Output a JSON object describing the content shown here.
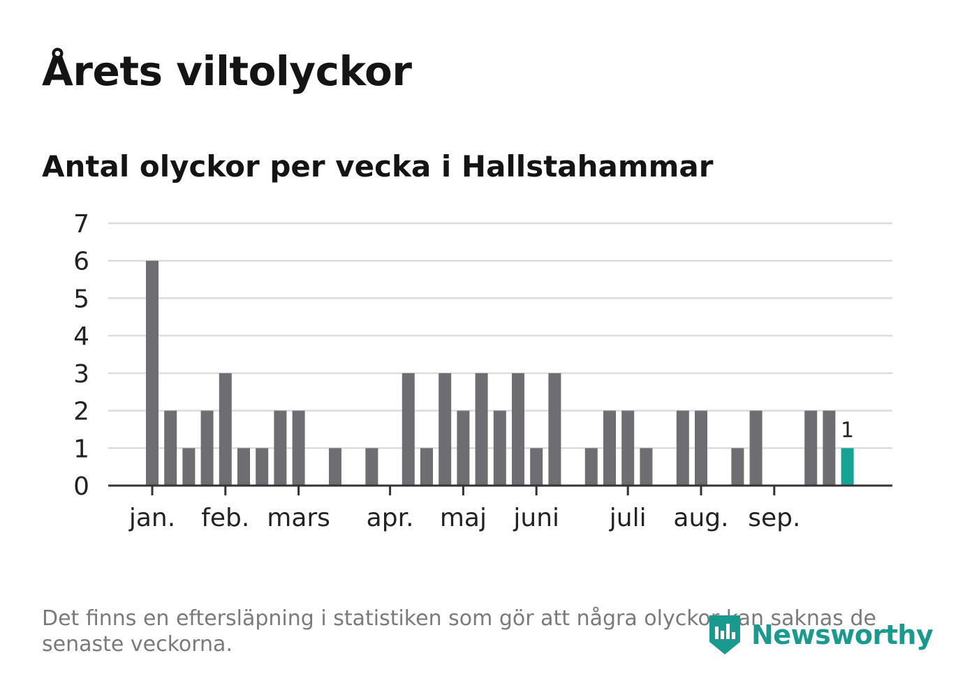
{
  "header": {
    "title": "Årets viltolyckor",
    "subtitle": "Antal olyckor per vecka i Hallstahammar"
  },
  "footnote": "Det finns en eftersläpning i statistiken som gör att några olyckor kan saknas de senaste veckorna.",
  "logo": {
    "text": "Newsworthy",
    "icon": "bar-chart-badge-icon"
  },
  "colors": {
    "bar": "#6e6d72",
    "highlight": "#17a392",
    "grid": "#dcdcdc",
    "axis": "#333333",
    "brand": "#1a9a8e"
  },
  "chart_data": {
    "type": "bar",
    "title": "Antal olyckor per vecka i Hallstahammar",
    "xlabel": "",
    "ylabel": "",
    "ylim": [
      0,
      7
    ],
    "yticks": [
      0,
      1,
      2,
      3,
      4,
      5,
      6,
      7
    ],
    "week_start": 1,
    "values": [
      6,
      2,
      1,
      2,
      3,
      1,
      1,
      2,
      2,
      0,
      1,
      0,
      1,
      0,
      3,
      1,
      3,
      2,
      3,
      2,
      3,
      1,
      3,
      0,
      1,
      2,
      2,
      1,
      0,
      2,
      2,
      0,
      1,
      2,
      0,
      0,
      2,
      2,
      1
    ],
    "month_labels": [
      {
        "label": "jan.",
        "week": 1
      },
      {
        "label": "feb.",
        "week": 5
      },
      {
        "label": "mars",
        "week": 9
      },
      {
        "label": "apr.",
        "week": 14
      },
      {
        "label": "maj",
        "week": 18
      },
      {
        "label": "juni",
        "week": 22
      },
      {
        "label": "juli",
        "week": 27
      },
      {
        "label": "aug.",
        "week": 31
      },
      {
        "label": "sep.",
        "week": 35
      }
    ],
    "highlight_last": true,
    "annotations": [
      {
        "week": 39,
        "text": "1"
      }
    ],
    "grid": true,
    "legend": "none"
  }
}
